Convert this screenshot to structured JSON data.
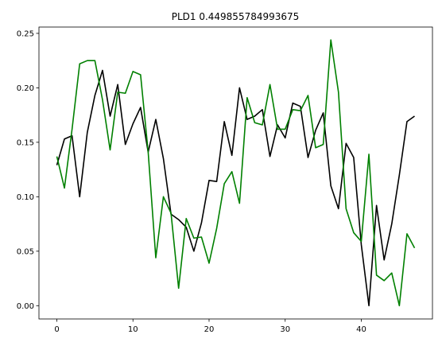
{
  "chart_data": {
    "type": "line",
    "title": "PLD1 0.449855784993675",
    "xlabel": "",
    "ylabel": "",
    "xlim": [
      -2.35,
      49.35
    ],
    "ylim": [
      -0.0122,
      0.2558
    ],
    "xticks": [
      0,
      10,
      20,
      30,
      40
    ],
    "xtick_labels": [
      "0",
      "10",
      "20",
      "30",
      "40"
    ],
    "yticks": [
      0.0,
      0.05,
      0.1,
      0.15,
      0.2,
      0.25
    ],
    "ytick_labels": [
      "0.00",
      "0.05",
      "0.10",
      "0.15",
      "0.20",
      "0.25"
    ],
    "grid": false,
    "x": [
      0,
      1,
      2,
      3,
      4,
      5,
      6,
      7,
      8,
      9,
      10,
      11,
      12,
      13,
      14,
      15,
      16,
      17,
      18,
      19,
      20,
      21,
      22,
      23,
      24,
      25,
      26,
      27,
      28,
      29,
      30,
      31,
      32,
      33,
      34,
      35,
      36,
      37,
      38,
      39,
      40,
      41,
      42,
      43,
      44,
      45,
      46,
      47
    ],
    "series": [
      {
        "color": "#000000",
        "values": [
          0.129,
          0.153,
          0.156,
          0.1,
          0.159,
          0.193,
          0.216,
          0.174,
          0.203,
          0.148,
          0.167,
          0.182,
          0.141,
          0.171,
          0.135,
          0.084,
          0.079,
          0.072,
          0.05,
          0.076,
          0.115,
          0.114,
          0.169,
          0.138,
          0.2,
          0.171,
          0.174,
          0.18,
          0.137,
          0.166,
          0.154,
          0.186,
          0.183,
          0.136,
          0.161,
          0.177,
          0.11,
          0.089,
          0.149,
          0.136,
          0.056,
          0.0,
          0.092,
          0.042,
          0.075,
          0.12,
          0.169,
          0.174
        ]
      },
      {
        "color": "#008000",
        "values": [
          0.137,
          0.108,
          0.162,
          0.222,
          0.225,
          0.225,
          0.189,
          0.143,
          0.196,
          0.195,
          0.215,
          0.212,
          0.141,
          0.044,
          0.1,
          0.085,
          0.016,
          0.08,
          0.062,
          0.063,
          0.039,
          0.071,
          0.112,
          0.123,
          0.094,
          0.191,
          0.168,
          0.166,
          0.203,
          0.162,
          0.162,
          0.18,
          0.179,
          0.193,
          0.145,
          0.148,
          0.244,
          0.196,
          0.089,
          0.067,
          0.059,
          0.139,
          0.028,
          0.023,
          0.03,
          0.0,
          0.066,
          0.053
        ]
      }
    ]
  }
}
